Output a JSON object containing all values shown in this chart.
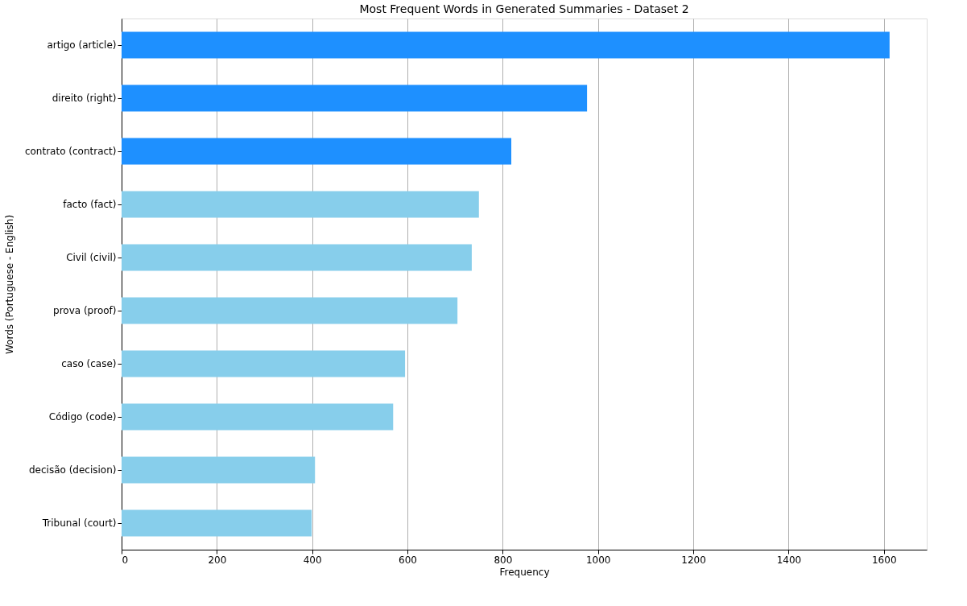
{
  "chart_data": {
    "type": "bar",
    "orientation": "horizontal",
    "title": "Most Frequent Words in Generated Summaries -  Dataset 2",
    "xlabel": "Frequency",
    "ylabel": "Words (Portuguese - English)",
    "categories": [
      "artigo (article)",
      "direito (right)",
      "contrato (contract)",
      "facto (fact)",
      "Civil (civil)",
      "prova (proof)",
      "caso (case)",
      "Código (code)",
      "decisão (decision)",
      "Tribunal (court)"
    ],
    "values": [
      1612,
      977,
      818,
      750,
      735,
      705,
      595,
      570,
      406,
      399
    ],
    "colors": [
      "#1e90ff",
      "#1e90ff",
      "#1e90ff",
      "#87ceeb",
      "#87ceeb",
      "#87ceeb",
      "#87ceeb",
      "#87ceeb",
      "#87ceeb",
      "#87ceeb"
    ],
    "xlim": [
      0,
      1690
    ],
    "xticks": [
      0,
      200,
      400,
      600,
      800,
      1000,
      1200,
      1400,
      1600
    ],
    "grid": "x"
  }
}
